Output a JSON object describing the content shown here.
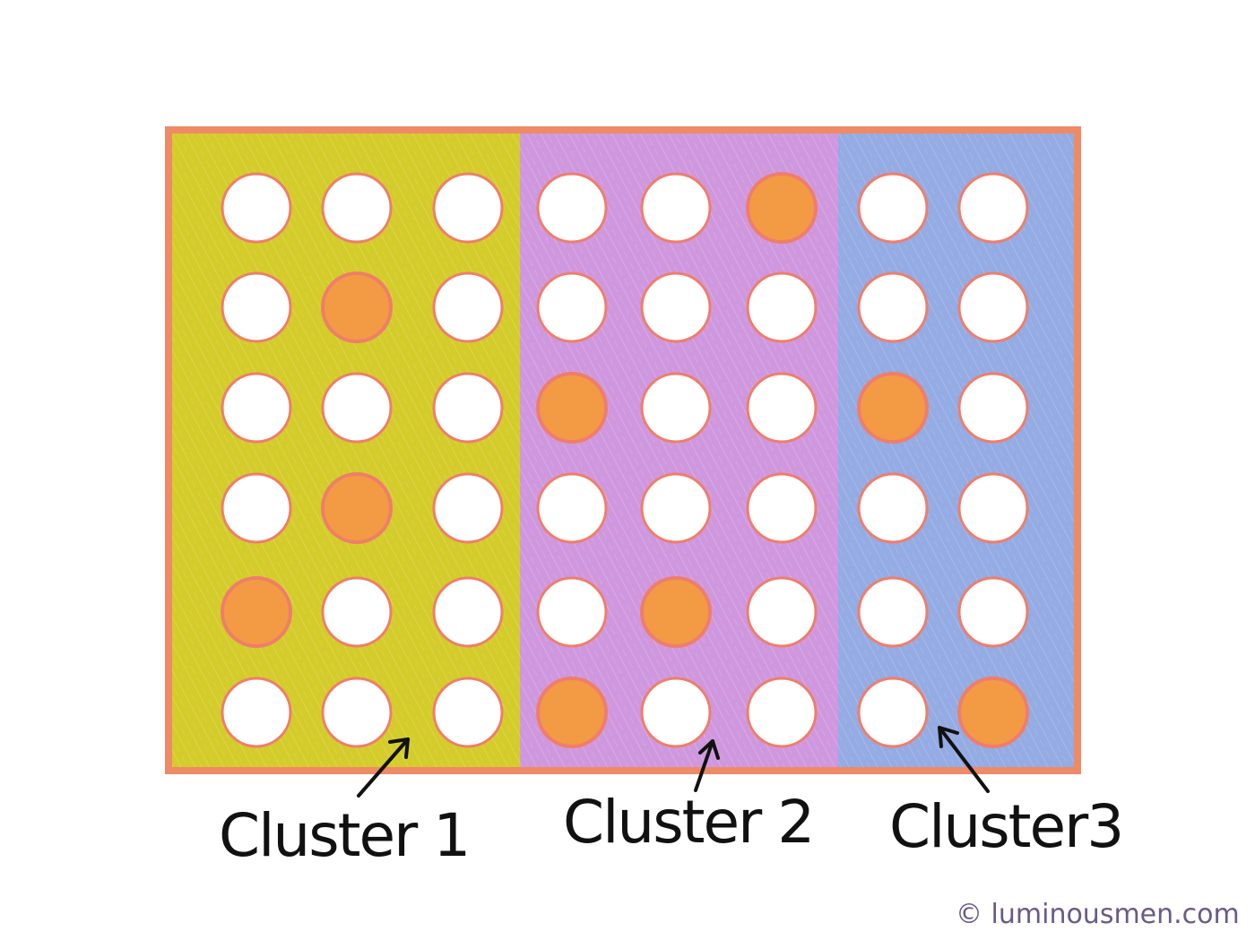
{
  "clusters": [
    {
      "label": "Cluster 1",
      "color": "#d4cc2a",
      "rows": [
        [
          "empty",
          "empty",
          "empty"
        ],
        [
          "empty",
          "filled",
          "empty"
        ],
        [
          "empty",
          "empty",
          "empty"
        ],
        [
          "empty",
          "filled",
          "empty"
        ],
        [
          "filled",
          "empty",
          "empty"
        ],
        [
          "empty",
          "empty",
          "empty"
        ]
      ]
    },
    {
      "label": "Cluster 2",
      "color": "#cf98de",
      "rows": [
        [
          "empty",
          "empty",
          "filled"
        ],
        [
          "empty",
          "empty",
          "empty"
        ],
        [
          "filled",
          "empty",
          "empty"
        ],
        [
          "empty",
          "empty",
          "empty"
        ],
        [
          "empty",
          "filled",
          "empty"
        ],
        [
          "filled",
          "empty",
          "empty"
        ]
      ]
    },
    {
      "label": "Cluster3",
      "color": "#94abe3",
      "rows": [
        [
          "empty",
          "empty"
        ],
        [
          "empty",
          "empty"
        ],
        [
          "filled",
          "empty"
        ],
        [
          "empty",
          "empty"
        ],
        [
          "empty",
          "empty"
        ],
        [
          "empty",
          "filled"
        ]
      ]
    }
  ],
  "colors": {
    "border": "#ef8a66",
    "empty_circle": "#ffffff",
    "filled_circle": "#f39a45",
    "circle_outline": "#f07d6a",
    "arrow": "#111111"
  },
  "credit": "© luminousmen.com"
}
